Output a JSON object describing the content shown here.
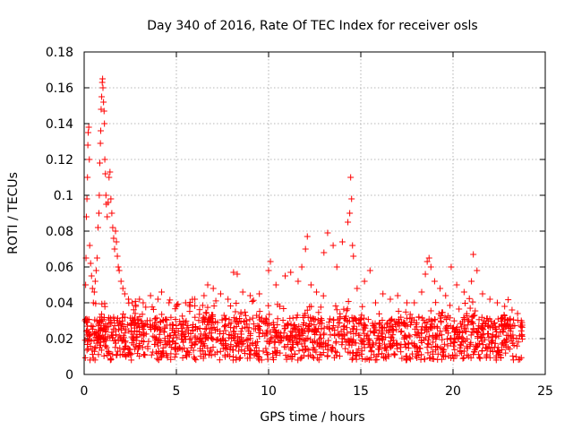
{
  "chart_data": {
    "type": "scatter",
    "title": "Day 340 of 2016, Rate Of TEC Index for receiver osls",
    "xlabel": "GPS time / hours",
    "ylabel": "ROTI / TECUs",
    "xlim": [
      0,
      25
    ],
    "ylim": [
      0,
      0.18
    ],
    "x_ticks": [
      "0",
      "5",
      "10",
      "15",
      "20",
      "25"
    ],
    "y_ticks": [
      "0",
      "0.02",
      "0.04",
      "0.06",
      "0.08",
      "0.1",
      "0.12",
      "0.14",
      "0.16",
      "0.18"
    ],
    "grid": true,
    "marker": "plus",
    "color": "#ff0000",
    "series": [
      {
        "points": [
          [
            0.05,
            0.03
          ],
          [
            0.08,
            0.05
          ],
          [
            0.1,
            0.065
          ],
          [
            0.12,
            0.088
          ],
          [
            0.15,
            0.098
          ],
          [
            0.18,
            0.11
          ],
          [
            0.2,
            0.128
          ],
          [
            0.22,
            0.135
          ],
          [
            0.25,
            0.138
          ],
          [
            0.28,
            0.12
          ],
          [
            0.3,
            0.072
          ],
          [
            0.35,
            0.062
          ],
          [
            0.4,
            0.055
          ],
          [
            0.45,
            0.048
          ],
          [
            0.5,
            0.04
          ],
          [
            0.55,
            0.046
          ],
          [
            0.6,
            0.052
          ],
          [
            0.65,
            0.058
          ],
          [
            0.7,
            0.065
          ],
          [
            0.75,
            0.082
          ],
          [
            0.8,
            0.09
          ],
          [
            0.82,
            0.1
          ],
          [
            0.85,
            0.118
          ],
          [
            0.88,
            0.129
          ],
          [
            0.9,
            0.136
          ],
          [
            0.92,
            0.148
          ],
          [
            0.95,
            0.155
          ],
          [
            0.98,
            0.163
          ],
          [
            1.0,
            0.165
          ],
          [
            1.02,
            0.16
          ],
          [
            1.05,
            0.152
          ],
          [
            1.08,
            0.147
          ],
          [
            1.1,
            0.14
          ],
          [
            1.12,
            0.12
          ],
          [
            1.15,
            0.112
          ],
          [
            1.18,
            0.1
          ],
          [
            1.2,
            0.095
          ],
          [
            1.25,
            0.088
          ],
          [
            1.3,
            0.096
          ],
          [
            1.35,
            0.11
          ],
          [
            1.4,
            0.113
          ],
          [
            1.45,
            0.098
          ],
          [
            1.5,
            0.09
          ],
          [
            1.55,
            0.082
          ],
          [
            1.6,
            0.076
          ],
          [
            1.65,
            0.07
          ],
          [
            1.7,
            0.08
          ],
          [
            1.75,
            0.074
          ],
          [
            1.8,
            0.066
          ],
          [
            1.85,
            0.06
          ],
          [
            1.9,
            0.058
          ],
          [
            2.0,
            0.052
          ],
          [
            2.1,
            0.048
          ],
          [
            2.2,
            0.045
          ],
          [
            2.4,
            0.042
          ],
          [
            2.6,
            0.04
          ],
          [
            2.8,
            0.038
          ],
          [
            3.0,
            0.042
          ],
          [
            3.2,
            0.04
          ],
          [
            3.6,
            0.044
          ],
          [
            4.0,
            0.042
          ],
          [
            4.2,
            0.046
          ],
          [
            4.6,
            0.04
          ],
          [
            5.0,
            0.038
          ],
          [
            5.5,
            0.04
          ],
          [
            6.0,
            0.042
          ],
          [
            6.5,
            0.044
          ],
          [
            6.7,
            0.05
          ],
          [
            7.0,
            0.048
          ],
          [
            7.4,
            0.045
          ],
          [
            7.8,
            0.042
          ],
          [
            8.1,
            0.057
          ],
          [
            8.3,
            0.056
          ],
          [
            8.6,
            0.046
          ],
          [
            9.0,
            0.044
          ],
          [
            9.5,
            0.045
          ],
          [
            10.0,
            0.058
          ],
          [
            10.1,
            0.063
          ],
          [
            10.4,
            0.05
          ],
          [
            10.9,
            0.055
          ],
          [
            11.2,
            0.057
          ],
          [
            11.6,
            0.052
          ],
          [
            11.8,
            0.06
          ],
          [
            12.0,
            0.07
          ],
          [
            12.1,
            0.077
          ],
          [
            12.3,
            0.05
          ],
          [
            12.6,
            0.046
          ],
          [
            13.0,
            0.068
          ],
          [
            13.2,
            0.079
          ],
          [
            13.5,
            0.072
          ],
          [
            13.7,
            0.06
          ],
          [
            14.0,
            0.074
          ],
          [
            14.3,
            0.085
          ],
          [
            14.4,
            0.09
          ],
          [
            14.45,
            0.11
          ],
          [
            14.5,
            0.098
          ],
          [
            14.55,
            0.072
          ],
          [
            14.6,
            0.066
          ],
          [
            14.8,
            0.048
          ],
          [
            15.2,
            0.052
          ],
          [
            15.5,
            0.058
          ],
          [
            15.8,
            0.04
          ],
          [
            16.2,
            0.045
          ],
          [
            16.6,
            0.042
          ],
          [
            17.0,
            0.044
          ],
          [
            17.5,
            0.04
          ],
          [
            17.9,
            0.04
          ],
          [
            18.3,
            0.046
          ],
          [
            18.5,
            0.056
          ],
          [
            18.6,
            0.063
          ],
          [
            18.7,
            0.065
          ],
          [
            18.8,
            0.06
          ],
          [
            19.0,
            0.052
          ],
          [
            19.3,
            0.048
          ],
          [
            19.6,
            0.044
          ],
          [
            19.9,
            0.06
          ],
          [
            20.2,
            0.05
          ],
          [
            20.6,
            0.046
          ],
          [
            21.0,
            0.052
          ],
          [
            21.1,
            0.067
          ],
          [
            21.3,
            0.058
          ],
          [
            21.6,
            0.045
          ],
          [
            22.0,
            0.042
          ],
          [
            22.4,
            0.04
          ],
          [
            22.8,
            0.038
          ],
          [
            23.2,
            0.036
          ],
          [
            23.5,
            0.034
          ],
          [
            23.7,
            0.03
          ]
        ]
      }
    ]
  }
}
